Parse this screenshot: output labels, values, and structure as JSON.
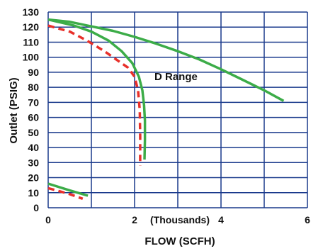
{
  "chart_data": {
    "type": "line",
    "title": "",
    "xlabel": "FLOW (SCFH)",
    "ylabel": "Outlet (PSIG)",
    "x_unit_label": "(Thousands)",
    "xlim": [
      0,
      6
    ],
    "ylim": [
      0,
      130
    ],
    "x_ticks": [
      0,
      2,
      4,
      6
    ],
    "x_tick_labels": [
      "0",
      "2",
      "4",
      "6"
    ],
    "x_gridlines": [
      0,
      1,
      2,
      3,
      4,
      5,
      6
    ],
    "y_ticks": [
      0,
      10,
      20,
      30,
      40,
      50,
      60,
      70,
      80,
      90,
      100,
      110,
      120,
      130
    ],
    "y_tick_labels": [
      "0",
      "10",
      "20",
      "30",
      "40",
      "50",
      "60",
      "70",
      "80",
      "90",
      "100",
      "110",
      "120",
      "130"
    ],
    "grid": true,
    "annotations": [
      {
        "text": "D Range",
        "x": 2.45,
        "y": 86
      }
    ],
    "colors": {
      "grid": "#1a3a8c",
      "green": "#3cac48",
      "red": "#e8302a"
    },
    "series": [
      {
        "color": "#3cac48",
        "style": "solid",
        "x": [
          0,
          0.5,
          1.0,
          1.5,
          2.0,
          2.5,
          3.0,
          3.5,
          4.0,
          4.5,
          5.0,
          5.45
        ],
        "y": [
          125,
          123.5,
          120.5,
          117.5,
          113.5,
          109,
          104,
          98.5,
          92,
          85,
          78,
          71
        ]
      },
      {
        "color": "#3cac48",
        "style": "solid",
        "x": [
          0,
          0.6,
          1.0,
          1.4,
          1.7,
          1.95,
          2.1,
          2.18,
          2.22,
          2.24,
          2.24,
          2.23
        ],
        "y": [
          125,
          121,
          117,
          111,
          104,
          96,
          87,
          78,
          68,
          58,
          45,
          32
        ]
      },
      {
        "color": "#e8302a",
        "style": "dashed",
        "x": [
          0,
          0.5,
          0.9,
          1.3,
          1.6,
          1.85,
          2.0,
          2.08,
          2.12,
          2.13,
          2.13
        ],
        "y": [
          121,
          117,
          111,
          104,
          98,
          93,
          87,
          78,
          65,
          48,
          28
        ]
      },
      {
        "color": "#3cac48",
        "style": "solid",
        "x": [
          0,
          0.5,
          0.92
        ],
        "y": [
          16,
          11.5,
          8
        ]
      },
      {
        "color": "#e8302a",
        "style": "dashed",
        "x": [
          0,
          0.45,
          0.8
        ],
        "y": [
          13,
          9.5,
          6
        ]
      }
    ]
  }
}
